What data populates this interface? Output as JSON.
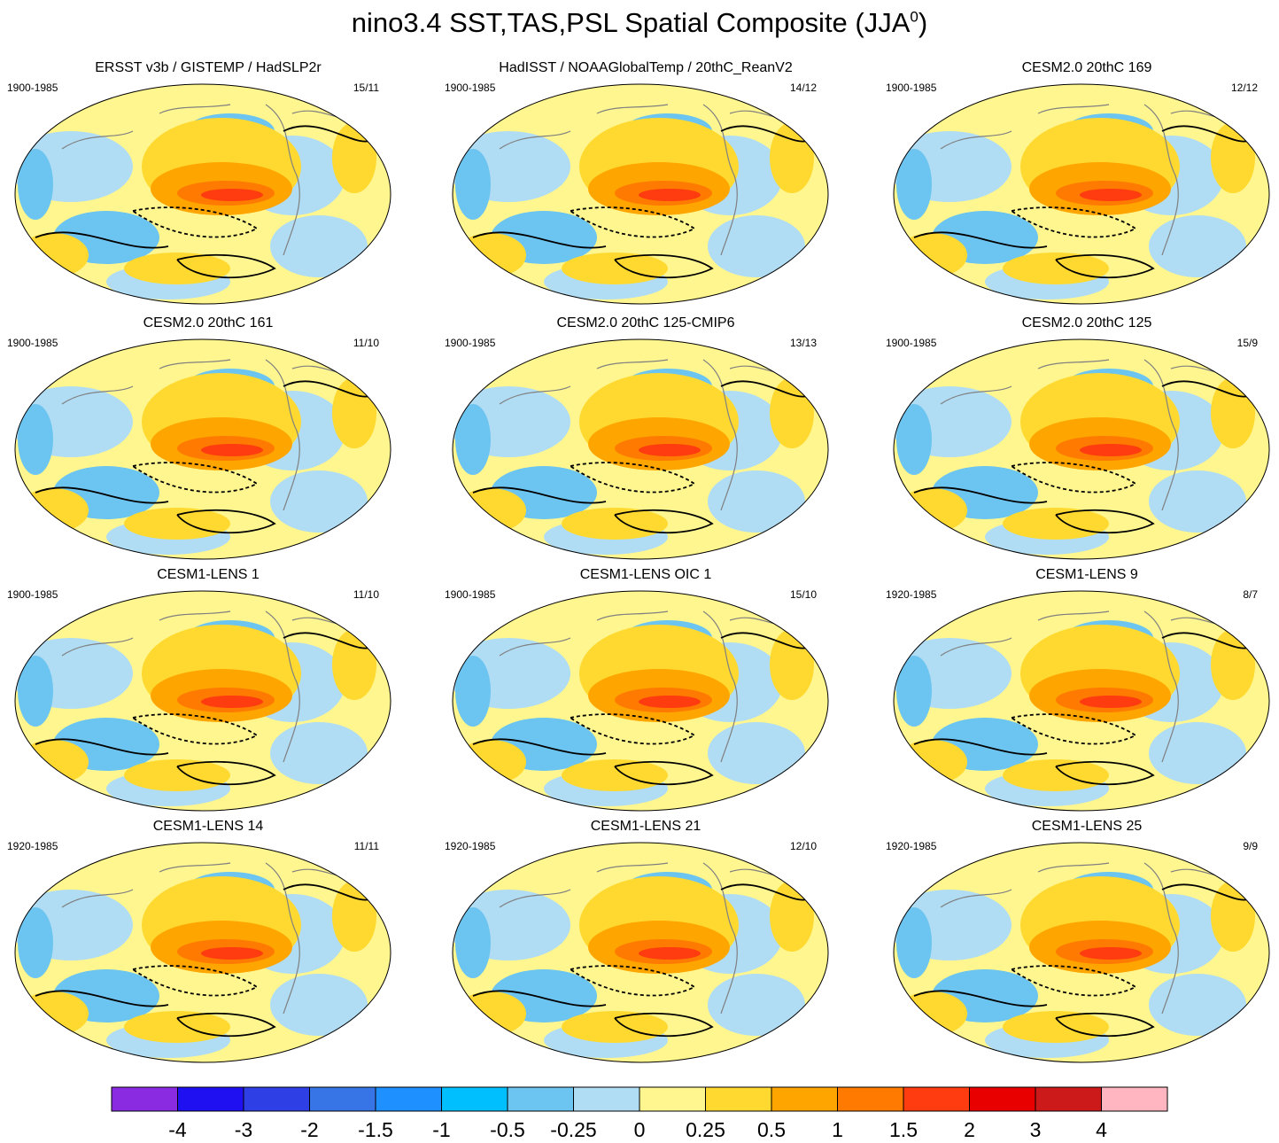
{
  "title": {
    "text": "nino3.4 SST,TAS,PSL Spatial Composite (JJA",
    "superscript": "0",
    "close": ")"
  },
  "chart_data": {
    "type": "heatmap",
    "projection": "robinson-like global map",
    "description_fields": [
      "title",
      "period",
      "events"
    ],
    "panels": [
      {
        "title": "ERSST v3b / GISTEMP / HadSLP2r",
        "period": "1900-1985",
        "events": "15/11"
      },
      {
        "title": "HadISST / NOAAGlobalTemp / 20thC_ReanV2",
        "period": "1900-1985",
        "events": "14/12"
      },
      {
        "title": "CESM2.0 20thC 169",
        "period": "1900-1985",
        "events": "12/12"
      },
      {
        "title": "CESM2.0 20thC 161",
        "period": "1900-1985",
        "events": "11/10"
      },
      {
        "title": "CESM2.0 20thC 125-CMIP6",
        "period": "1900-1985",
        "events": "13/13"
      },
      {
        "title": "CESM2.0 20thC 125",
        "period": "1900-1985",
        "events": "15/9"
      },
      {
        "title": "CESM1-LENS 1",
        "period": "1900-1985",
        "events": "11/10"
      },
      {
        "title": "CESM1-LENS OIC 1",
        "period": "1900-1985",
        "events": "15/10"
      },
      {
        "title": "CESM1-LENS 9",
        "period": "1920-1985",
        "events": "8/7"
      },
      {
        "title": "CESM1-LENS 14",
        "period": "1920-1985",
        "events": "11/11"
      },
      {
        "title": "CESM1-LENS 21",
        "period": "1920-1985",
        "events": "12/10"
      },
      {
        "title": "CESM1-LENS 25",
        "period": "1920-1985",
        "events": "9/9"
      }
    ],
    "colorbar": {
      "levels": [
        "-4",
        "-3",
        "-2",
        "-1.5",
        "-1",
        "-0.5",
        "-0.25",
        "0",
        "0.25",
        "0.5",
        "1",
        "1.5",
        "2",
        "3",
        "4"
      ],
      "colors": [
        "#8a2be2",
        "#1e10f0",
        "#2f3fe6",
        "#3774e6",
        "#1e90ff",
        "#00bfff",
        "#6cc4f0",
        "#b0dcf4",
        "#fff68f",
        "#ffd92f",
        "#ffa500",
        "#ff7a00",
        "#ff3c0f",
        "#e80000",
        "#cc1a1a",
        "#ffb6c1"
      ]
    }
  }
}
